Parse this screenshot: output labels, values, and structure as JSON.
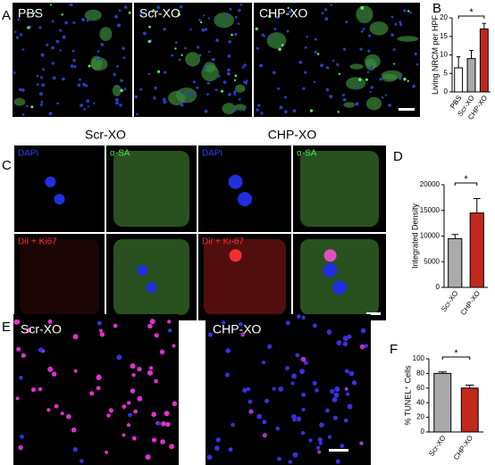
{
  "panel_letters": [
    "A",
    "B",
    "C",
    "D",
    "E",
    "F"
  ],
  "panel_a": {
    "labels": [
      "PBS",
      "Scr-XO",
      "CHP-XO"
    ]
  },
  "panel_c": {
    "titles": [
      "Scr-XO",
      "CHP-XO"
    ],
    "channel_labels": [
      [
        "DAPI",
        "α-SA",
        "DiI + Ki67"
      ],
      [
        "DAPI",
        "α-SA",
        "DiI + Ki-67"
      ]
    ]
  },
  "panel_e": {
    "labels": [
      "Scr-XO",
      "CHP-XO"
    ]
  },
  "chart_data": [
    {
      "type": "bar",
      "y_label": "Living NRCM per HPF",
      "categories": [
        "PBS",
        "Scr-XO",
        "CHP-XO"
      ],
      "values": [
        6.5,
        9,
        17
      ],
      "errors": [
        3,
        2.2,
        1.5
      ],
      "colors": [
        "#ffffff",
        "#aaaaaa",
        "#c0281c"
      ],
      "ylim": [
        0,
        20
      ],
      "yticks": [
        0,
        5,
        10,
        15,
        20
      ],
      "significance": {
        "label": "*",
        "between": [
          "PBS",
          "CHP-XO"
        ]
      }
    },
    {
      "type": "bar",
      "y_label": "Integrated Density",
      "categories": [
        "Scr-XO",
        "CHP-XO"
      ],
      "values": [
        9500,
        14500
      ],
      "errors": [
        800,
        2800
      ],
      "colors": [
        "#aaaaaa",
        "#c0281c"
      ],
      "ylim": [
        0,
        20000
      ],
      "yticks": [
        0,
        5000,
        10000,
        15000,
        20000
      ],
      "significance": {
        "label": "*",
        "between": [
          "Scr-XO",
          "CHP-XO"
        ]
      }
    },
    {
      "type": "bar",
      "y_label": "% TUNEL⁺ Cells",
      "categories": [
        "Scr-XO",
        "CHP-XO"
      ],
      "values": [
        80,
        60
      ],
      "errors": [
        2,
        4
      ],
      "colors": [
        "#aaaaaa",
        "#c0281c"
      ],
      "ylim": [
        0,
        100
      ],
      "yticks": [
        0,
        20,
        40,
        60,
        80,
        100
      ],
      "significance": {
        "label": "*",
        "between": [
          "Scr-XO",
          "CHP-XO"
        ]
      }
    }
  ]
}
